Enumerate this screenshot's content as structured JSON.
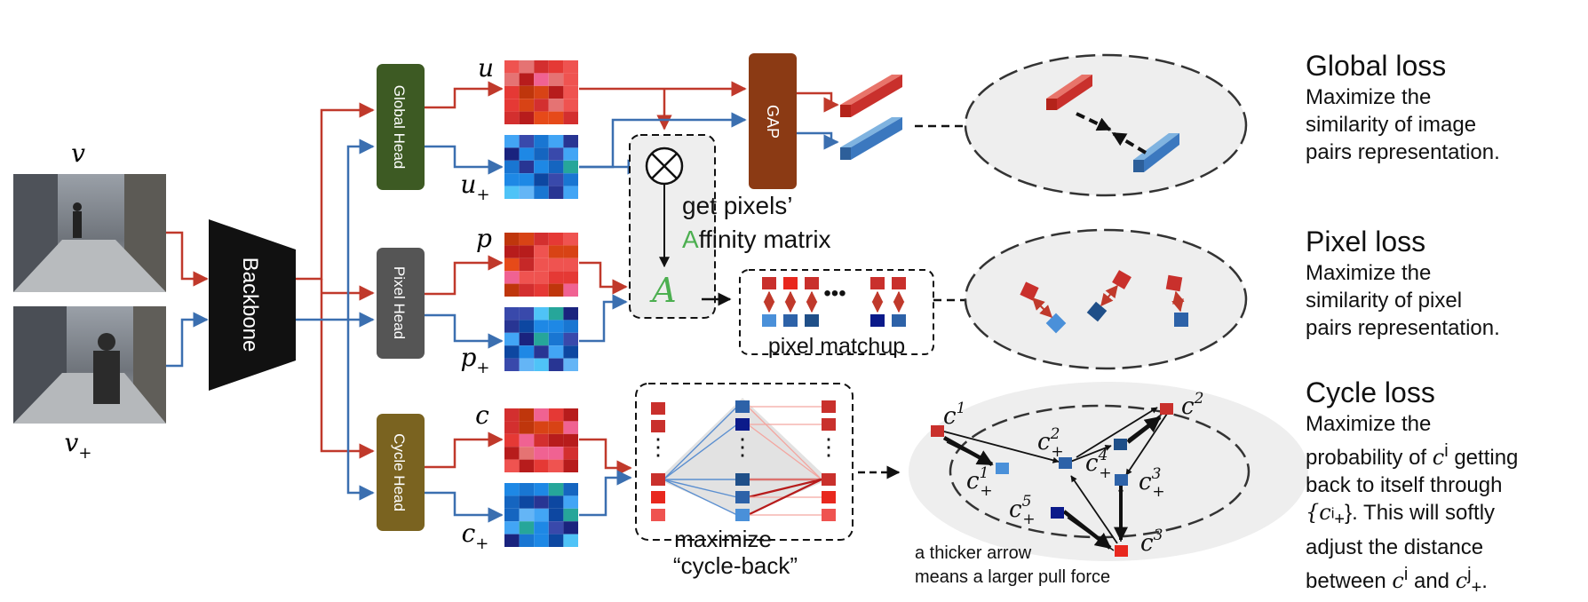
{
  "inputs": {
    "frame_label": "v",
    "frame_plus_label": "v",
    "frame_plus_sub": "+"
  },
  "backbone_label": "Backbone",
  "heads": {
    "global": "Global Head",
    "pixel": "Pixel Head",
    "cycle": "Cycle Head"
  },
  "features": {
    "u": "u",
    "u_plus": "u",
    "p": "p",
    "p_plus": "p",
    "c": "c",
    "c_plus": "c",
    "plus_sub": "+"
  },
  "gap_label": "GAP",
  "affinity": {
    "caption_line1": "get pixels’",
    "caption_first_letter": "A",
    "caption_rest": "ffinity matrix",
    "symbol": "A"
  },
  "pixel_matchup_label": "pixel matchup",
  "dots": "•••",
  "cycle_back": {
    "line1": "maximize",
    "line2": "“cycle-back”"
  },
  "cycle_graph": {
    "c1": "c",
    "c1_sup": "1",
    "c1p": "c",
    "c1p_sup": "1",
    "c1p_sub": "+",
    "c2p": "c",
    "c2p_sup": "2",
    "c2p_sub": "+",
    "c4p": "c",
    "c4p_sup": "4",
    "c4p_sub": "+",
    "c3p": "c",
    "c3p_sup": "3",
    "c3p_sub": "+",
    "c5p": "c",
    "c5p_sup": "5",
    "c5p_sub": "+",
    "c2": "c",
    "c2_sup": "2",
    "c3": "c",
    "c3_sup": "3"
  },
  "arrow_note": {
    "line1": "a thicker arrow",
    "line2": "means a larger pull force"
  },
  "losses": {
    "global": {
      "title": "Global loss",
      "lines": [
        "Maximize the",
        "similarity of image",
        "pairs representation."
      ]
    },
    "pixel": {
      "title": "Pixel loss",
      "lines": [
        "Maximize the",
        "similarity of pixel",
        "pairs representation."
      ]
    },
    "cycle": {
      "title": "Cycle loss",
      "line1": "Maximize the",
      "line2_pre": "probability of ",
      "line2_var": "c",
      "line2_sup": "i",
      "line2_post": " getting",
      "line3": "back to itself through",
      "line4_var": "{c",
      "line4_sup": "i",
      "line4_sub": "+",
      "line4_post": "}. This will softly",
      "line5": "adjust the distance",
      "line6_pre": "between ",
      "line6_var1": "c",
      "line6_sup1": "i",
      "line6_mid": " and ",
      "line6_var2": "c",
      "line6_sup2": "j",
      "line6_sub2": "+",
      "line6_post": "."
    }
  },
  "colors": {
    "red_arrow": "#c0392b",
    "blue_arrow": "#3b6fb0",
    "global_head": "#3d5a23",
    "pixel_head": "#555555",
    "cycle_head": "#7a6320",
    "gap": "#8b3a14",
    "backbone": "#111111",
    "affinity_green": "#4caf50"
  }
}
